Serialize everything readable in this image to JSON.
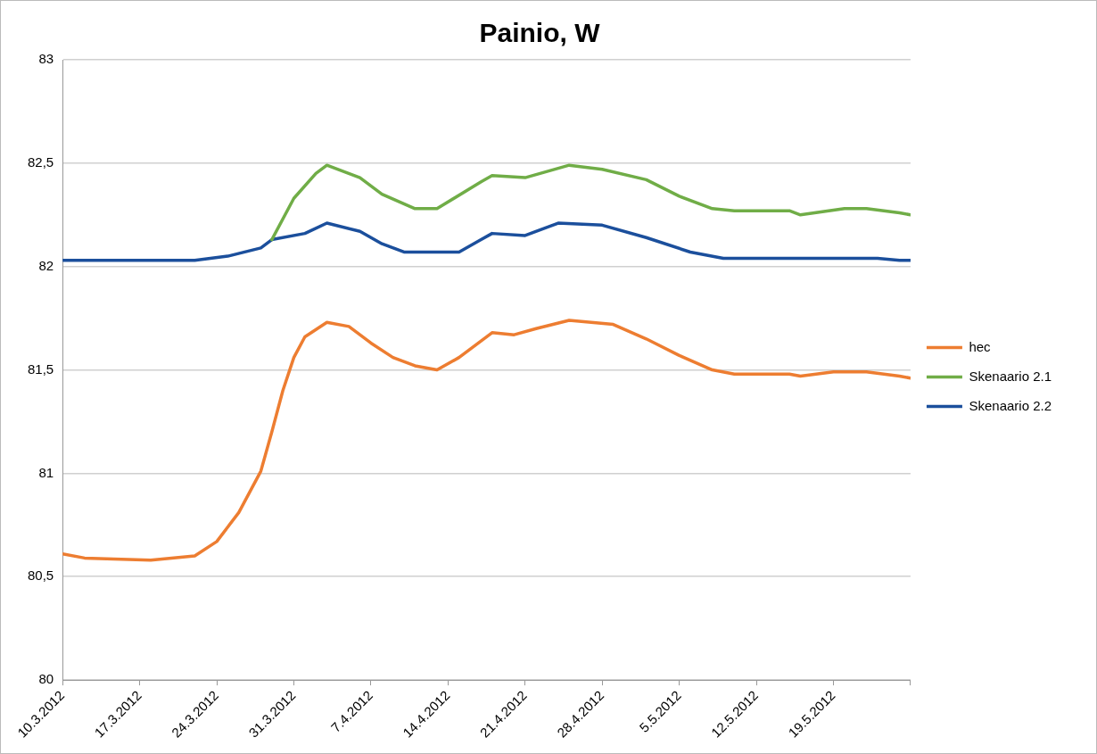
{
  "chart_data": {
    "type": "line",
    "title": "Painio, W",
    "xlim": [
      "2012-03-10",
      "2012-05-26"
    ],
    "xticks": [
      {
        "value": "2012-03-10",
        "label": "10.3.2012"
      },
      {
        "value": "2012-03-17",
        "label": "17.3.2012"
      },
      {
        "value": "2012-03-24",
        "label": "24.3.2012"
      },
      {
        "value": "2012-03-31",
        "label": "31.3.2012"
      },
      {
        "value": "2012-04-07",
        "label": "7.4.2012"
      },
      {
        "value": "2012-04-14",
        "label": "14.4.2012"
      },
      {
        "value": "2012-04-21",
        "label": "21.4.2012"
      },
      {
        "value": "2012-04-28",
        "label": "28.4.2012"
      },
      {
        "value": "2012-05-05",
        "label": "5.5.2012"
      },
      {
        "value": "2012-05-12",
        "label": "12.5.2012"
      },
      {
        "value": "2012-05-19",
        "label": "19.5.2012"
      },
      {
        "value": "2012-05-26",
        "label": null
      }
    ],
    "ylim": [
      80,
      83
    ],
    "yticks": [
      80,
      {
        "value": 80.5,
        "label": "80,5"
      },
      81,
      {
        "value": 81.5,
        "label": "81,5"
      },
      82,
      {
        "value": 82.5,
        "label": "82,5"
      },
      83
    ],
    "grid": "y",
    "legend": "right",
    "marker": "none",
    "line_style": "solid",
    "series": [
      {
        "name": "hec",
        "color": "#ed7d31",
        "x": [
          "2012-03-10",
          "2012-03-12",
          "2012-03-18",
          "2012-03-22",
          "2012-03-24",
          "2012-03-26",
          "2012-03-28",
          "2012-03-29",
          "2012-03-30",
          "2012-03-31",
          "2012-04-01",
          "2012-04-03",
          "2012-04-05",
          "2012-04-07",
          "2012-04-09",
          "2012-04-11",
          "2012-04-13",
          "2012-04-15",
          "2012-04-17",
          "2012-04-18",
          "2012-04-20",
          "2012-04-22",
          "2012-04-25",
          "2012-04-29",
          "2012-05-02",
          "2012-05-05",
          "2012-05-08",
          "2012-05-10",
          "2012-05-15",
          "2012-05-16",
          "2012-05-19",
          "2012-05-22",
          "2012-05-25",
          "2012-05-26"
        ],
        "values": [
          80.61,
          80.59,
          80.58,
          80.6,
          80.67,
          80.81,
          81.01,
          81.2,
          81.4,
          81.56,
          81.66,
          81.73,
          81.71,
          81.63,
          81.56,
          81.52,
          81.5,
          81.56,
          81.64,
          81.68,
          81.67,
          81.7,
          81.74,
          81.72,
          81.65,
          81.57,
          81.5,
          81.48,
          81.48,
          81.47,
          81.49,
          81.49,
          81.47,
          81.46
        ]
      },
      {
        "name": "Skenaario 2.1",
        "color": "#70ad47",
        "x": [
          "2012-03-29",
          "2012-03-31",
          "2012-04-02",
          "2012-04-03",
          "2012-04-06",
          "2012-04-08",
          "2012-04-11",
          "2012-04-13",
          "2012-04-17",
          "2012-04-18",
          "2012-04-21",
          "2012-04-25",
          "2012-04-28",
          "2012-05-02",
          "2012-05-05",
          "2012-05-08",
          "2012-05-10",
          "2012-05-15",
          "2012-05-16",
          "2012-05-20",
          "2012-05-22",
          "2012-05-25",
          "2012-05-26"
        ],
        "values": [
          82.13,
          82.33,
          82.45,
          82.49,
          82.43,
          82.35,
          82.28,
          82.28,
          82.41,
          82.44,
          82.43,
          82.49,
          82.47,
          82.42,
          82.34,
          82.28,
          82.27,
          82.27,
          82.25,
          82.28,
          82.28,
          82.26,
          82.25
        ]
      },
      {
        "name": "Skenaario 2.2",
        "color": "#1b4f9c",
        "x": [
          "2012-03-10",
          "2012-03-22",
          "2012-03-25",
          "2012-03-28",
          "2012-03-29",
          "2012-04-01",
          "2012-04-03",
          "2012-04-06",
          "2012-04-08",
          "2012-04-10",
          "2012-04-15",
          "2012-04-17",
          "2012-04-18",
          "2012-04-21",
          "2012-04-24",
          "2012-04-28",
          "2012-05-02",
          "2012-05-06",
          "2012-05-09",
          "2012-05-23",
          "2012-05-25",
          "2012-05-26"
        ],
        "values": [
          82.03,
          82.03,
          82.05,
          82.09,
          82.13,
          82.16,
          82.21,
          82.17,
          82.11,
          82.07,
          82.07,
          82.13,
          82.16,
          82.15,
          82.21,
          82.2,
          82.14,
          82.07,
          82.04,
          82.04,
          82.03,
          82.03
        ]
      }
    ]
  }
}
